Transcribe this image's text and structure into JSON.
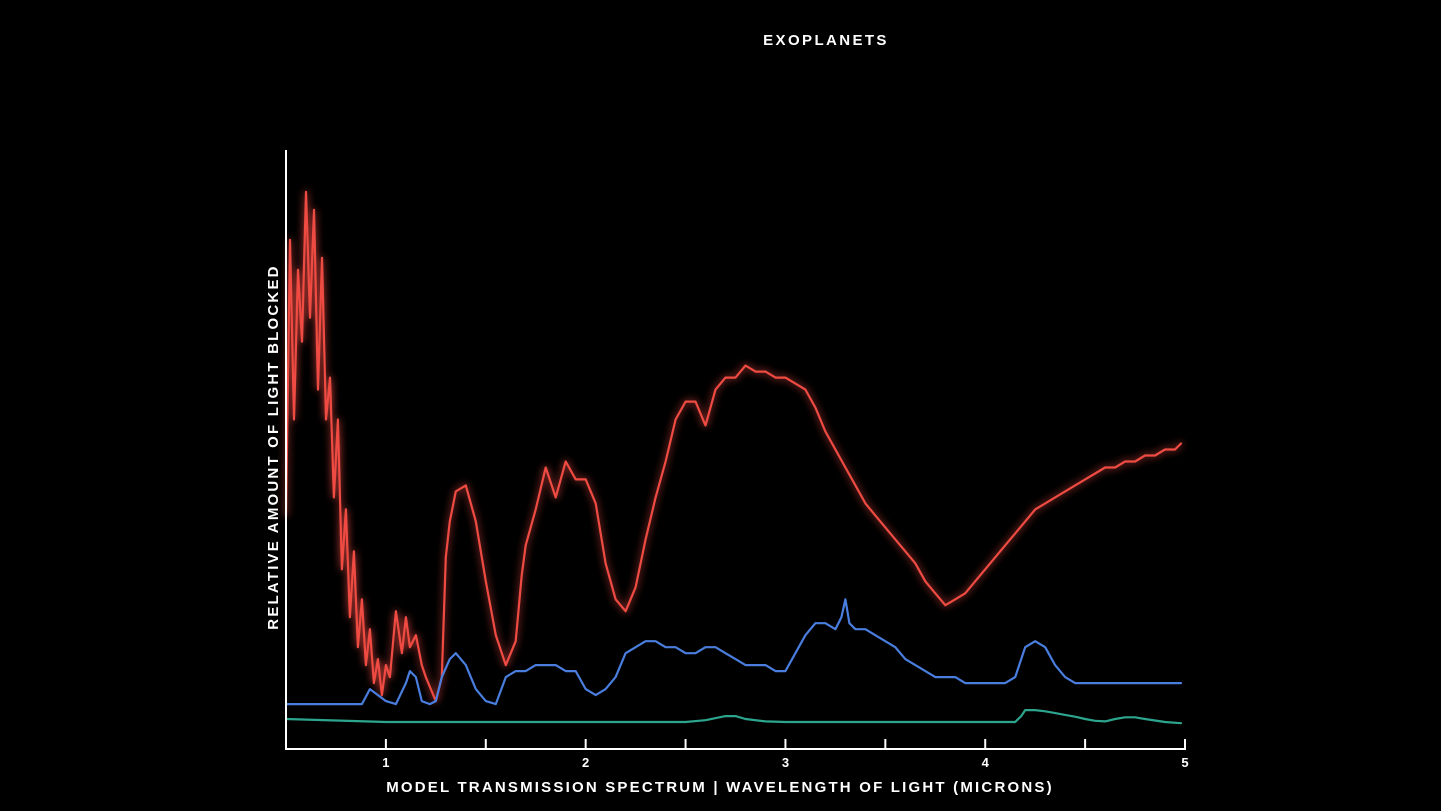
{
  "chart_data": {
    "type": "line",
    "title": "EXOPLANETS",
    "xlabel": "MODEL TRANSMISSION SPECTRUM | WAVELENGTH OF LIGHT (MICRONS)",
    "ylabel": "RELATIVE AMOUNT OF LIGHT BLOCKED",
    "xlim": [
      0.5,
      5.0
    ],
    "ylim": [
      0,
      100
    ],
    "x_ticks": [
      1,
      2,
      3,
      4,
      5
    ],
    "x_minor_ticks": [
      1.5,
      2.5,
      3.5,
      4.5
    ],
    "y_ticks": [],
    "grid": false,
    "legend": "none",
    "series": [
      {
        "color": "#ef4b43",
        "glow": true,
        "x": [
          0.5,
          0.52,
          0.54,
          0.56,
          0.58,
          0.6,
          0.62,
          0.64,
          0.66,
          0.68,
          0.7,
          0.72,
          0.74,
          0.76,
          0.78,
          0.8,
          0.82,
          0.84,
          0.86,
          0.88,
          0.9,
          0.92,
          0.94,
          0.96,
          0.98,
          1.0,
          1.02,
          1.05,
          1.08,
          1.1,
          1.12,
          1.15,
          1.18,
          1.2,
          1.25,
          1.28,
          1.3,
          1.32,
          1.35,
          1.4,
          1.45,
          1.5,
          1.55,
          1.6,
          1.65,
          1.68,
          1.7,
          1.75,
          1.8,
          1.85,
          1.9,
          1.95,
          2.0,
          2.05,
          2.1,
          2.15,
          2.2,
          2.25,
          2.3,
          2.35,
          2.4,
          2.45,
          2.5,
          2.55,
          2.6,
          2.65,
          2.7,
          2.75,
          2.8,
          2.85,
          2.9,
          2.95,
          3.0,
          3.05,
          3.1,
          3.15,
          3.2,
          3.25,
          3.3,
          3.35,
          3.4,
          3.45,
          3.5,
          3.55,
          3.6,
          3.65,
          3.7,
          3.75,
          3.8,
          3.85,
          3.9,
          3.95,
          4.0,
          4.05,
          4.1,
          4.15,
          4.2,
          4.25,
          4.3,
          4.35,
          4.4,
          4.45,
          4.5,
          4.55,
          4.6,
          4.65,
          4.7,
          4.75,
          4.8,
          4.85,
          4.9,
          4.95,
          4.98
        ],
        "values": [
          39,
          85,
          55,
          80,
          68,
          93,
          72,
          90,
          60,
          82,
          55,
          62,
          42,
          55,
          30,
          40,
          22,
          33,
          17,
          25,
          14,
          20,
          11,
          15,
          9,
          14,
          12,
          23,
          16,
          22,
          17,
          19,
          14,
          12,
          8,
          12,
          32,
          38,
          43,
          44,
          38,
          28,
          19,
          14,
          18,
          29,
          34,
          40,
          47,
          42,
          48,
          45,
          45,
          41,
          31,
          25,
          23,
          27,
          35,
          42,
          48,
          55,
          58,
          58,
          54,
          60,
          62,
          62,
          64,
          63,
          63,
          62,
          62,
          61,
          60,
          57,
          53,
          50,
          47,
          44,
          41,
          39,
          37,
          35,
          33,
          31,
          28,
          26,
          24,
          25,
          26,
          28,
          30,
          32,
          34,
          36,
          38,
          40,
          41,
          42,
          43,
          44,
          45,
          46,
          47,
          47,
          48,
          48,
          49,
          49,
          50,
          50,
          51
        ]
      },
      {
        "color": "#4a7ede",
        "glow": false,
        "x": [
          0.5,
          0.6,
          0.7,
          0.8,
          0.88,
          0.92,
          1.0,
          1.05,
          1.1,
          1.12,
          1.15,
          1.18,
          1.22,
          1.25,
          1.28,
          1.32,
          1.35,
          1.4,
          1.45,
          1.5,
          1.55,
          1.6,
          1.65,
          1.7,
          1.75,
          1.8,
          1.85,
          1.9,
          1.95,
          2.0,
          2.05,
          2.1,
          2.15,
          2.2,
          2.25,
          2.3,
          2.35,
          2.4,
          2.45,
          2.5,
          2.55,
          2.6,
          2.65,
          2.7,
          2.75,
          2.8,
          2.85,
          2.9,
          2.95,
          3.0,
          3.05,
          3.1,
          3.15,
          3.2,
          3.25,
          3.28,
          3.3,
          3.32,
          3.35,
          3.4,
          3.45,
          3.5,
          3.55,
          3.6,
          3.65,
          3.7,
          3.75,
          3.8,
          3.85,
          3.9,
          3.95,
          4.0,
          4.05,
          4.1,
          4.15,
          4.2,
          4.25,
          4.3,
          4.35,
          4.4,
          4.45,
          4.5,
          4.55,
          4.6,
          4.65,
          4.7,
          4.75,
          4.8,
          4.85,
          4.9,
          4.95,
          4.98
        ],
        "values": [
          7.5,
          7.5,
          7.5,
          7.5,
          7.5,
          10,
          8,
          7.5,
          11,
          13,
          12,
          8,
          7.5,
          8,
          12,
          15,
          16,
          14,
          10,
          8,
          7.5,
          12,
          13,
          13,
          14,
          14,
          14,
          13,
          13,
          10,
          9,
          10,
          12,
          16,
          17,
          18,
          18,
          17,
          17,
          16,
          16,
          17,
          17,
          16,
          15,
          14,
          14,
          14,
          13,
          13,
          16,
          19,
          21,
          21,
          20,
          22,
          25,
          21,
          20,
          20,
          19,
          18,
          17,
          15,
          14,
          13,
          12,
          12,
          12,
          11,
          11,
          11,
          11,
          11,
          12,
          17,
          18,
          17,
          14,
          12,
          11,
          11,
          11,
          11,
          11,
          11,
          11,
          11,
          11,
          11,
          11,
          11
        ]
      },
      {
        "color": "#2da58e",
        "glow": false,
        "x": [
          0.5,
          1.0,
          1.5,
          2.0,
          2.5,
          2.6,
          2.7,
          2.75,
          2.8,
          2.9,
          3.0,
          3.2,
          3.4,
          3.6,
          3.8,
          4.0,
          4.1,
          4.15,
          4.18,
          4.2,
          4.25,
          4.3,
          4.35,
          4.4,
          4.45,
          4.5,
          4.55,
          4.6,
          4.65,
          4.7,
          4.75,
          4.8,
          4.9,
          4.98
        ],
        "values": [
          5,
          4.5,
          4.5,
          4.5,
          4.5,
          4.8,
          5.5,
          5.5,
          5,
          4.6,
          4.5,
          4.5,
          4.5,
          4.5,
          4.5,
          4.5,
          4.5,
          4.5,
          5.5,
          6.5,
          6.5,
          6.3,
          6,
          5.7,
          5.4,
          5,
          4.7,
          4.6,
          5,
          5.3,
          5.3,
          5,
          4.5,
          4.3
        ]
      }
    ]
  }
}
